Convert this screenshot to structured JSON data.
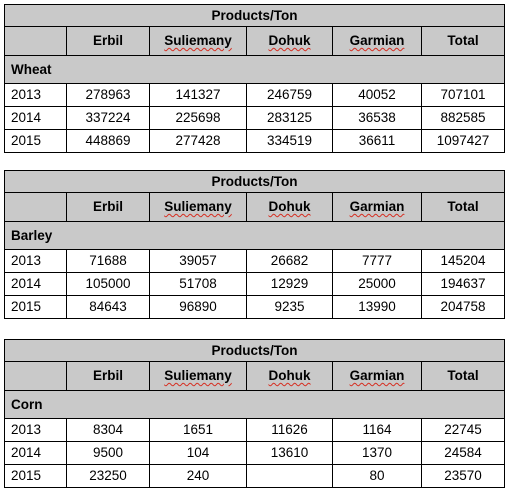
{
  "tables": [
    {
      "title": "Products/Ton",
      "columns": [
        "Erbil",
        "Suliemany",
        "Dohuk",
        "Garmian",
        "Total"
      ],
      "crop": "Wheat",
      "rows": [
        {
          "year": "2013",
          "values": [
            "278963",
            "141327",
            "246759",
            "40052",
            "707101"
          ]
        },
        {
          "year": "2014",
          "values": [
            "337224",
            "225698",
            "283125",
            "36538",
            "882585"
          ]
        },
        {
          "year": "2015",
          "values": [
            "448869",
            "277428",
            "334519",
            "36611",
            "1097427"
          ]
        }
      ]
    },
    {
      "title": "Products/Ton",
      "columns": [
        "Erbil",
        "Suliemany",
        "Dohuk",
        "Garmian",
        "Total"
      ],
      "crop": "Barley",
      "rows": [
        {
          "year": "2013",
          "values": [
            "71688",
            "39057",
            "26682",
            "7777",
            "145204"
          ]
        },
        {
          "year": "2014",
          "values": [
            "105000",
            "51708",
            "12929",
            "25000",
            "194637"
          ]
        },
        {
          "year": "2015",
          "values": [
            "84643",
            "96890",
            "9235",
            "13990",
            "204758"
          ]
        }
      ]
    },
    {
      "title": "Products/Ton",
      "columns": [
        "Erbil",
        "Suliemany",
        "Dohuk",
        "Garmian",
        "Total"
      ],
      "crop": "Corn",
      "rows": [
        {
          "year": "2013",
          "values": [
            "8304",
            "1651",
            "11626",
            "1164",
            "22745"
          ]
        },
        {
          "year": "2014",
          "values": [
            "9500",
            "104",
            "13610",
            "1370",
            "24584"
          ]
        },
        {
          "year": "2015",
          "values": [
            "23250",
            "240",
            "",
            "80",
            "23570"
          ]
        }
      ]
    }
  ]
}
